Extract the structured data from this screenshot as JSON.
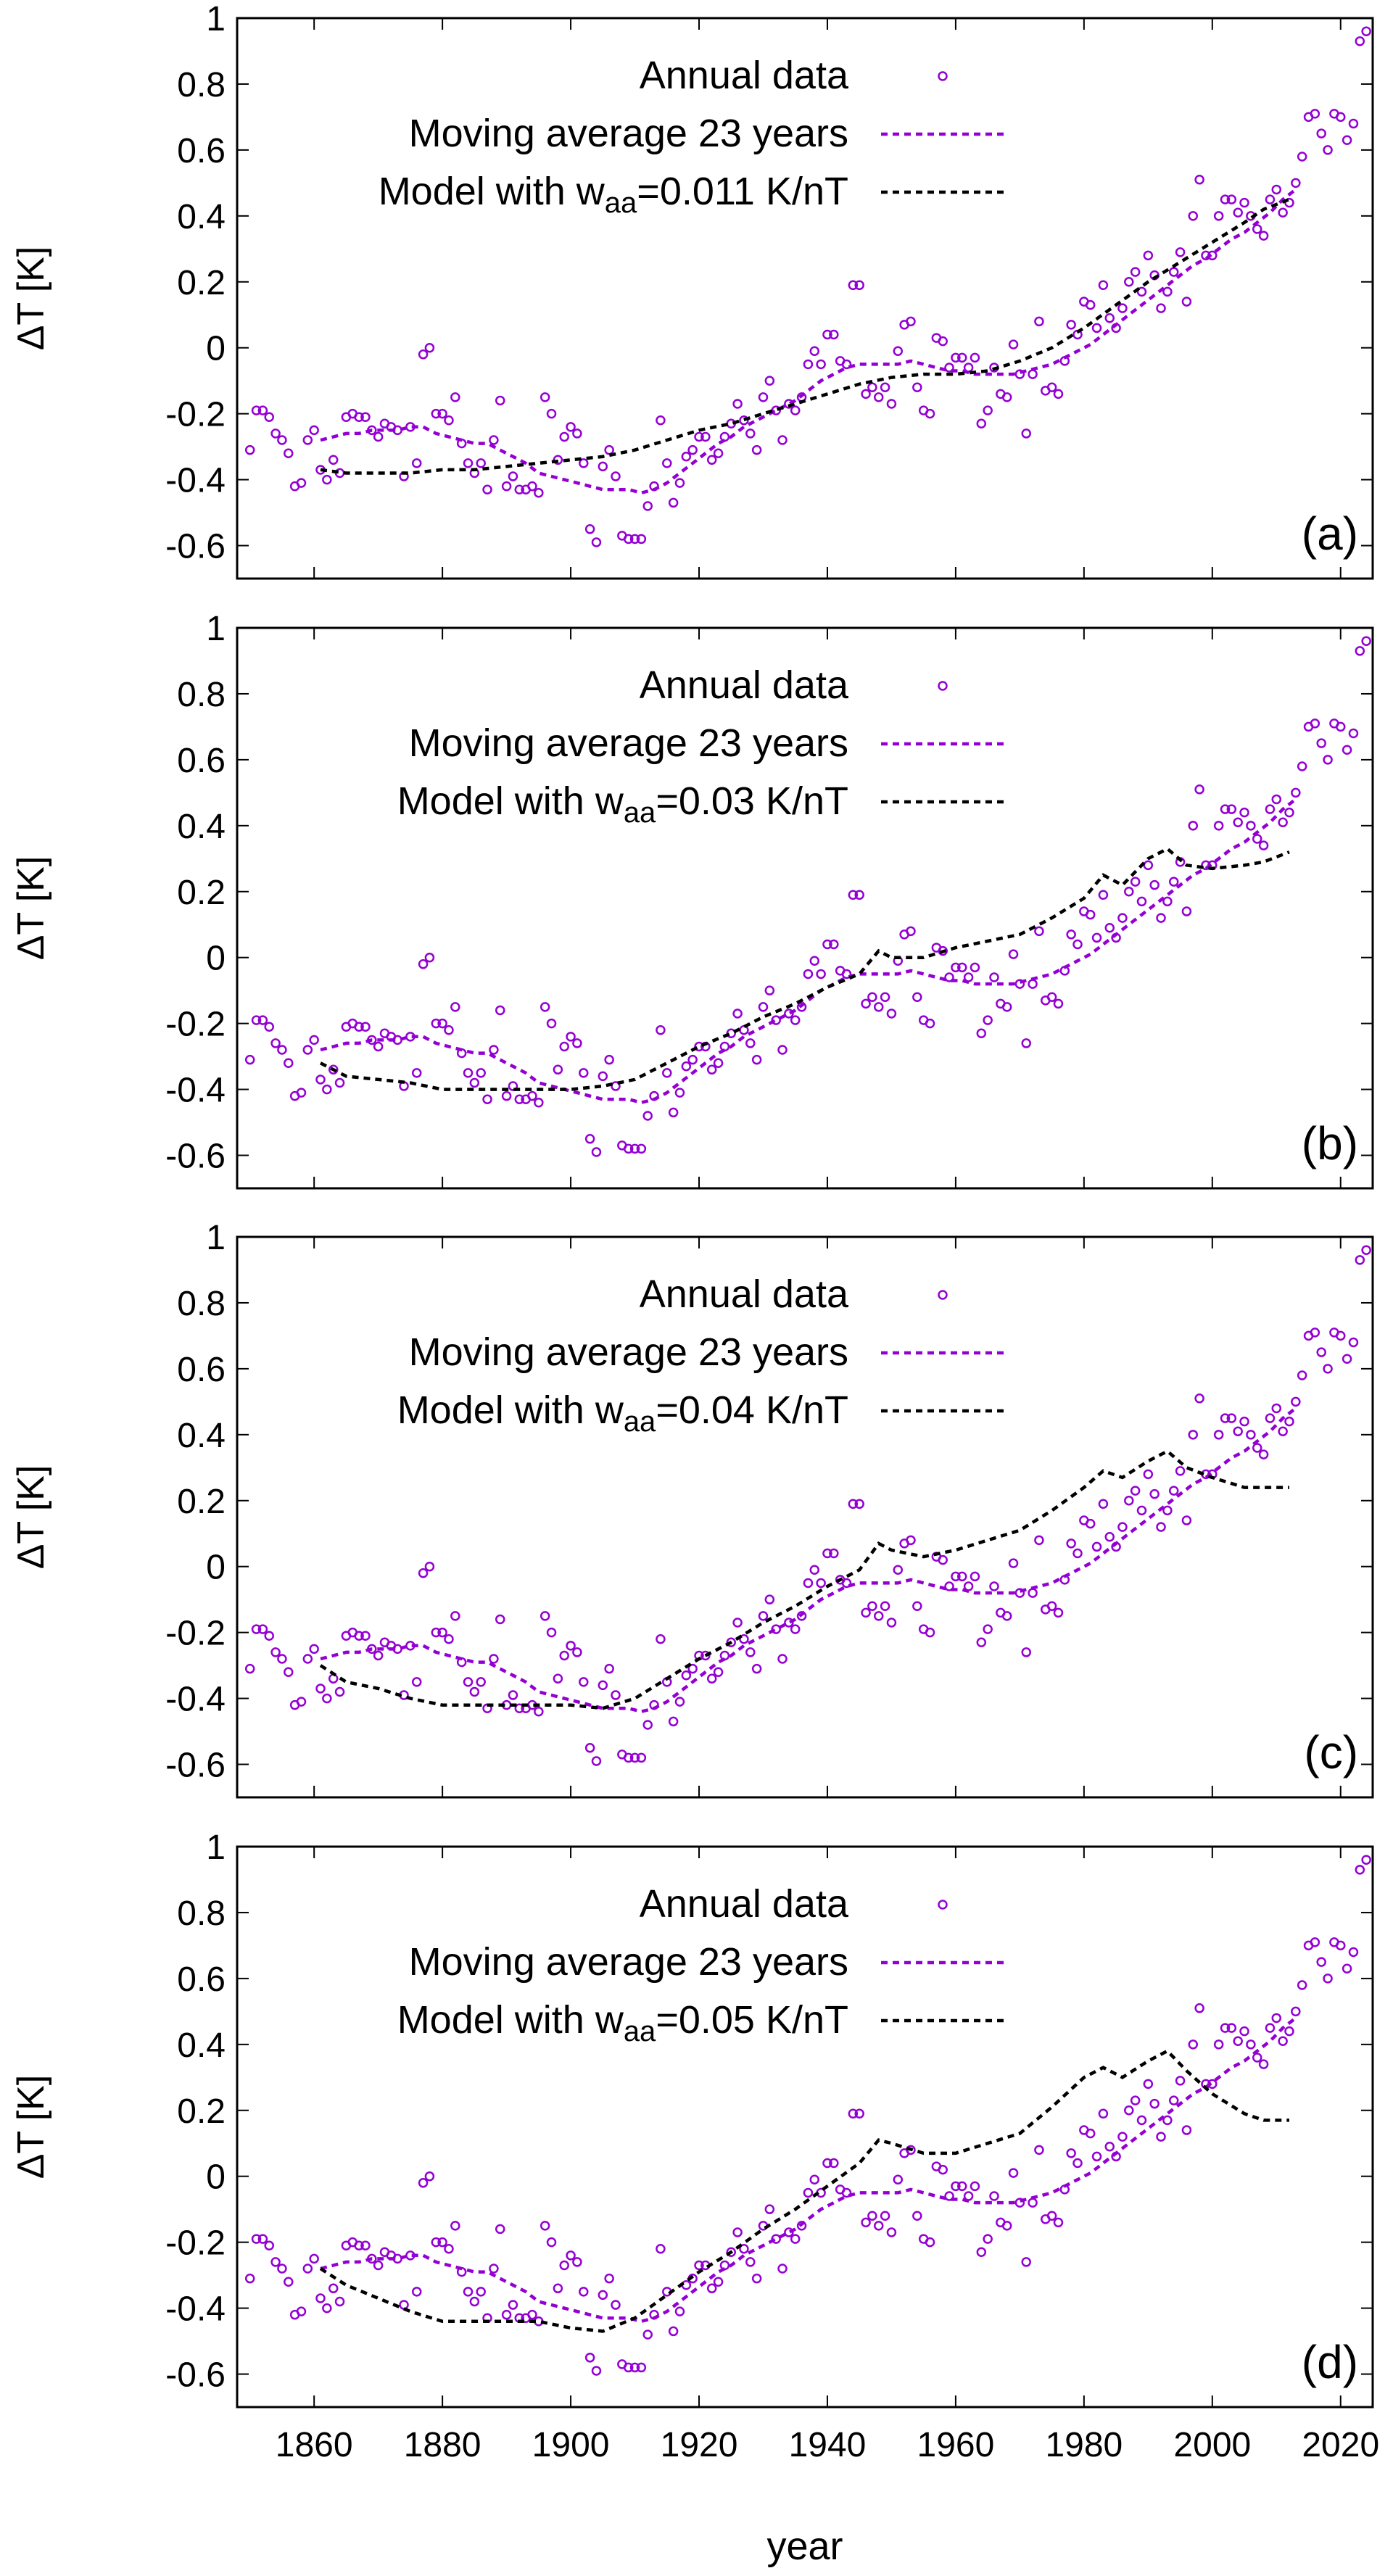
{
  "figure": {
    "xlabel": "year"
  },
  "chart_data": [
    {
      "type": "line",
      "panel_label": "(a)",
      "ylabel": "ΔT [K]",
      "xlim": [
        1848,
        2025
      ],
      "ylim": [
        -0.7,
        1.0
      ],
      "xticks": [
        1860,
        1880,
        1900,
        1920,
        1940,
        1960,
        1980,
        2000,
        2020
      ],
      "yticks": [
        -0.6,
        -0.4,
        -0.2,
        0,
        0.2,
        0.4,
        0.6,
        0.8,
        1
      ],
      "ytick_labels": [
        "-0.6",
        "-0.4",
        "-0.2",
        "0",
        "0.2",
        "0.4",
        "0.6",
        "0.8",
        "1"
      ],
      "xtick_labels": [
        "1860",
        "1880",
        "1900",
        "1920",
        "1940",
        "1960",
        "1980",
        "2000",
        "2020"
      ],
      "legend": {
        "position": "top-center",
        "annual_label": "Annual data",
        "moving_label": "Moving average 23 years",
        "model_prefix": "Model with w",
        "model_sub": "aa",
        "model_suffix": "=0.011 K/nT"
      },
      "model": {
        "x": [
          1861,
          1865,
          1870,
          1875,
          1880,
          1885,
          1890,
          1895,
          1900,
          1905,
          1910,
          1915,
          1920,
          1925,
          1930,
          1935,
          1940,
          1945,
          1950,
          1955,
          1960,
          1965,
          1970,
          1975,
          1980,
          1985,
          1990,
          1995,
          2000,
          2005,
          2008,
          2012
        ],
        "y": [
          -0.37,
          -0.38,
          -0.38,
          -0.38,
          -0.37,
          -0.37,
          -0.36,
          -0.35,
          -0.34,
          -0.33,
          -0.31,
          -0.28,
          -0.25,
          -0.23,
          -0.2,
          -0.17,
          -0.14,
          -0.11,
          -0.09,
          -0.08,
          -0.08,
          -0.07,
          -0.04,
          0.0,
          0.06,
          0.13,
          0.2,
          0.26,
          0.32,
          0.38,
          0.42,
          0.45
        ]
      }
    },
    {
      "type": "line",
      "panel_label": "(b)",
      "ylabel": "ΔT [K]",
      "xlim": [
        1848,
        2025
      ],
      "ylim": [
        -0.7,
        1.0
      ],
      "xticks": [
        1860,
        1880,
        1900,
        1920,
        1940,
        1960,
        1980,
        2000,
        2020
      ],
      "yticks": [
        -0.6,
        -0.4,
        -0.2,
        0,
        0.2,
        0.4,
        0.6,
        0.8,
        1
      ],
      "ytick_labels": [
        "-0.6",
        "-0.4",
        "-0.2",
        "0",
        "0.2",
        "0.4",
        "0.6",
        "0.8",
        "1"
      ],
      "xtick_labels": [
        "1860",
        "1880",
        "1900",
        "1920",
        "1940",
        "1960",
        "1980",
        "2000",
        "2020"
      ],
      "legend": {
        "position": "top-center",
        "annual_label": "Annual data",
        "moving_label": "Moving average 23 years",
        "model_prefix": "Model with w",
        "model_sub": "aa",
        "model_suffix": "=0.03 K/nT"
      },
      "model": {
        "x": [
          1861,
          1865,
          1870,
          1875,
          1880,
          1885,
          1890,
          1895,
          1900,
          1905,
          1910,
          1915,
          1920,
          1925,
          1930,
          1935,
          1940,
          1945,
          1948,
          1950,
          1955,
          1960,
          1965,
          1970,
          1975,
          1980,
          1983,
          1986,
          1990,
          1993,
          1996,
          2000,
          2005,
          2008,
          2012
        ],
        "y": [
          -0.32,
          -0.36,
          -0.37,
          -0.38,
          -0.4,
          -0.4,
          -0.4,
          -0.4,
          -0.4,
          -0.39,
          -0.37,
          -0.32,
          -0.27,
          -0.23,
          -0.18,
          -0.14,
          -0.09,
          -0.05,
          0.02,
          0.0,
          0.0,
          0.03,
          0.05,
          0.07,
          0.12,
          0.18,
          0.25,
          0.22,
          0.3,
          0.33,
          0.28,
          0.27,
          0.28,
          0.29,
          0.32
        ]
      }
    },
    {
      "type": "line",
      "panel_label": "(c)",
      "ylabel": "ΔT [K]",
      "xlim": [
        1848,
        2025
      ],
      "ylim": [
        -0.7,
        1.0
      ],
      "xticks": [
        1860,
        1880,
        1900,
        1920,
        1940,
        1960,
        1980,
        2000,
        2020
      ],
      "yticks": [
        -0.6,
        -0.4,
        -0.2,
        0,
        0.2,
        0.4,
        0.6,
        0.8,
        1
      ],
      "ytick_labels": [
        "-0.6",
        "-0.4",
        "-0.2",
        "0",
        "0.2",
        "0.4",
        "0.6",
        "0.8",
        "1"
      ],
      "xtick_labels": [
        "1860",
        "1880",
        "1900",
        "1920",
        "1940",
        "1960",
        "1980",
        "2000",
        "2020"
      ],
      "legend": {
        "position": "top-center",
        "annual_label": "Annual data",
        "moving_label": "Moving average 23 years",
        "model_prefix": "Model with w",
        "model_sub": "aa",
        "model_suffix": "=0.04 K/nT"
      },
      "model": {
        "x": [
          1861,
          1865,
          1870,
          1875,
          1880,
          1885,
          1890,
          1895,
          1900,
          1905,
          1910,
          1915,
          1920,
          1925,
          1930,
          1935,
          1940,
          1945,
          1948,
          1950,
          1955,
          1960,
          1965,
          1970,
          1975,
          1980,
          1983,
          1986,
          1990,
          1993,
          1996,
          2000,
          2005,
          2008,
          2012
        ],
        "y": [
          -0.3,
          -0.35,
          -0.37,
          -0.4,
          -0.42,
          -0.42,
          -0.42,
          -0.42,
          -0.42,
          -0.43,
          -0.4,
          -0.34,
          -0.28,
          -0.23,
          -0.17,
          -0.12,
          -0.06,
          -0.01,
          0.07,
          0.05,
          0.03,
          0.05,
          0.08,
          0.11,
          0.17,
          0.24,
          0.29,
          0.27,
          0.32,
          0.35,
          0.3,
          0.27,
          0.24,
          0.24,
          0.24
        ]
      }
    },
    {
      "type": "line",
      "panel_label": "(d)",
      "ylabel": "ΔT [K]",
      "xlim": [
        1848,
        2025
      ],
      "ylim": [
        -0.7,
        1.0
      ],
      "xticks": [
        1860,
        1880,
        1900,
        1920,
        1940,
        1960,
        1980,
        2000,
        2020
      ],
      "yticks": [
        -0.6,
        -0.4,
        -0.2,
        0,
        0.2,
        0.4,
        0.6,
        0.8,
        1
      ],
      "ytick_labels": [
        "-0.6",
        "-0.4",
        "-0.2",
        "0",
        "0.2",
        "0.4",
        "0.6",
        "0.8",
        "1"
      ],
      "xtick_labels": [
        "1860",
        "1880",
        "1900",
        "1920",
        "1940",
        "1960",
        "1980",
        "2000",
        "2020"
      ],
      "legend": {
        "position": "top-center",
        "annual_label": "Annual data",
        "moving_label": "Moving average 23 years",
        "model_prefix": "Model with w",
        "model_sub": "aa",
        "model_suffix": "=0.05 K/nT"
      },
      "model": {
        "x": [
          1861,
          1865,
          1870,
          1875,
          1880,
          1885,
          1890,
          1895,
          1900,
          1905,
          1910,
          1915,
          1920,
          1925,
          1930,
          1935,
          1940,
          1945,
          1948,
          1950,
          1955,
          1960,
          1965,
          1970,
          1975,
          1980,
          1983,
          1986,
          1990,
          1993,
          1996,
          2000,
          2005,
          2008,
          2012
        ],
        "y": [
          -0.28,
          -0.33,
          -0.37,
          -0.41,
          -0.44,
          -0.44,
          -0.44,
          -0.44,
          -0.46,
          -0.47,
          -0.43,
          -0.36,
          -0.29,
          -0.23,
          -0.16,
          -0.1,
          -0.03,
          0.04,
          0.11,
          0.1,
          0.07,
          0.07,
          0.1,
          0.13,
          0.21,
          0.3,
          0.33,
          0.3,
          0.35,
          0.38,
          0.32,
          0.25,
          0.19,
          0.17,
          0.17
        ]
      }
    }
  ],
  "shared_series": {
    "annual": {
      "name": "Annual data",
      "x": [
        1850,
        1851,
        1852,
        1853,
        1854,
        1855,
        1856,
        1857,
        1858,
        1859,
        1860,
        1861,
        1862,
        1863,
        1864,
        1865,
        1866,
        1867,
        1868,
        1869,
        1870,
        1871,
        1872,
        1873,
        1874,
        1875,
        1876,
        1877,
        1878,
        1879,
        1880,
        1881,
        1882,
        1883,
        1884,
        1885,
        1886,
        1887,
        1888,
        1889,
        1890,
        1891,
        1892,
        1893,
        1894,
        1895,
        1896,
        1897,
        1898,
        1899,
        1900,
        1901,
        1902,
        1903,
        1904,
        1905,
        1906,
        1907,
        1908,
        1909,
        1910,
        1911,
        1912,
        1913,
        1914,
        1915,
        1916,
        1917,
        1918,
        1919,
        1920,
        1921,
        1922,
        1923,
        1924,
        1925,
        1926,
        1927,
        1928,
        1929,
        1930,
        1931,
        1932,
        1933,
        1934,
        1935,
        1936,
        1937,
        1938,
        1939,
        1940,
        1941,
        1942,
        1943,
        1944,
        1945,
        1946,
        1947,
        1948,
        1949,
        1950,
        1951,
        1952,
        1953,
        1954,
        1955,
        1956,
        1957,
        1958,
        1959,
        1960,
        1961,
        1962,
        1963,
        1964,
        1965,
        1966,
        1967,
        1968,
        1969,
        1970,
        1971,
        1972,
        1973,
        1974,
        1975,
        1976,
        1977,
        1978,
        1979,
        1980,
        1981,
        1982,
        1983,
        1984,
        1985,
        1986,
        1987,
        1988,
        1989,
        1990,
        1991,
        1992,
        1993,
        1994,
        1995,
        1996,
        1997,
        1998,
        1999,
        2000,
        2001,
        2002,
        2003,
        2004,
        2005,
        2006,
        2007,
        2008,
        2009,
        2010,
        2011,
        2012,
        2013,
        2014,
        2015,
        2016,
        2017,
        2018,
        2019,
        2020,
        2021,
        2022,
        2023,
        2024
      ],
      "y": [
        -0.31,
        -0.19,
        -0.19,
        -0.21,
        -0.26,
        -0.28,
        -0.32,
        -0.42,
        -0.41,
        -0.28,
        -0.25,
        -0.37,
        -0.4,
        -0.34,
        -0.38,
        -0.21,
        -0.2,
        -0.21,
        -0.21,
        -0.25,
        -0.27,
        -0.23,
        -0.24,
        -0.25,
        -0.39,
        -0.24,
        -0.35,
        -0.02,
        0.0,
        -0.2,
        -0.2,
        -0.22,
        -0.15,
        -0.29,
        -0.35,
        -0.38,
        -0.35,
        -0.43,
        -0.28,
        -0.16,
        -0.42,
        -0.39,
        -0.43,
        -0.43,
        -0.42,
        -0.44,
        -0.15,
        -0.2,
        -0.34,
        -0.27,
        -0.24,
        -0.26,
        -0.35,
        -0.55,
        -0.59,
        -0.36,
        -0.31,
        -0.39,
        -0.57,
        -0.58,
        -0.58,
        -0.58,
        -0.48,
        -0.42,
        -0.22,
        -0.35,
        -0.47,
        -0.41,
        -0.33,
        -0.31,
        -0.27,
        -0.27,
        -0.34,
        -0.32,
        -0.27,
        -0.23,
        -0.17,
        -0.22,
        -0.26,
        -0.31,
        -0.15,
        -0.1,
        -0.19,
        -0.28,
        -0.17,
        -0.19,
        -0.15,
        -0.05,
        -0.01,
        -0.05,
        0.04,
        0.04,
        -0.04,
        -0.05,
        0.19,
        0.19,
        -0.14,
        -0.12,
        -0.15,
        -0.12,
        -0.17,
        -0.01,
        0.07,
        0.08,
        -0.12,
        -0.19,
        -0.2,
        0.03,
        0.02,
        -0.06,
        -0.03,
        -0.03,
        -0.06,
        -0.03,
        -0.23,
        -0.19,
        -0.06,
        -0.14,
        -0.15,
        0.01,
        -0.08,
        -0.26,
        -0.08,
        0.08,
        -0.13,
        -0.12,
        -0.14,
        -0.04,
        0.07,
        0.04,
        0.14,
        0.13,
        0.06,
        0.19,
        0.09,
        0.06,
        0.12,
        0.2,
        0.23,
        0.17,
        0.28,
        0.22,
        0.12,
        0.17,
        0.23,
        0.29,
        0.14,
        0.4,
        0.51,
        0.28,
        0.28,
        0.4,
        0.45,
        0.45,
        0.41,
        0.44,
        0.4,
        0.36,
        0.34,
        0.45,
        0.48,
        0.41,
        0.44,
        0.5,
        0.58,
        0.7,
        0.71,
        0.65,
        0.6,
        0.71,
        0.7,
        0.63,
        0.68,
        0.93,
        0.96
      ]
    },
    "moving": {
      "name": "Moving average 23 years",
      "x": [
        1861,
        1863,
        1865,
        1867,
        1869,
        1871,
        1873,
        1875,
        1877,
        1879,
        1881,
        1883,
        1885,
        1887,
        1889,
        1891,
        1893,
        1895,
        1897,
        1899,
        1901,
        1903,
        1905,
        1907,
        1909,
        1911,
        1913,
        1915,
        1917,
        1919,
        1921,
        1923,
        1925,
        1927,
        1929,
        1931,
        1933,
        1935,
        1937,
        1939,
        1941,
        1943,
        1945,
        1947,
        1949,
        1951,
        1953,
        1955,
        1957,
        1959,
        1961,
        1963,
        1965,
        1967,
        1969,
        1971,
        1973,
        1975,
        1977,
        1979,
        1981,
        1983,
        1985,
        1987,
        1989,
        1991,
        1993,
        1995,
        1997,
        1999,
        2001,
        2003,
        2005,
        2007,
        2009,
        2011,
        2013
      ],
      "y": [
        -0.28,
        -0.27,
        -0.26,
        -0.26,
        -0.25,
        -0.25,
        -0.25,
        -0.24,
        -0.24,
        -0.26,
        -0.27,
        -0.28,
        -0.29,
        -0.29,
        -0.31,
        -0.33,
        -0.35,
        -0.38,
        -0.39,
        -0.4,
        -0.41,
        -0.42,
        -0.43,
        -0.43,
        -0.43,
        -0.44,
        -0.43,
        -0.41,
        -0.38,
        -0.35,
        -0.32,
        -0.29,
        -0.27,
        -0.24,
        -0.22,
        -0.2,
        -0.18,
        -0.16,
        -0.13,
        -0.1,
        -0.08,
        -0.06,
        -0.05,
        -0.05,
        -0.05,
        -0.05,
        -0.04,
        -0.05,
        -0.06,
        -0.07,
        -0.07,
        -0.08,
        -0.08,
        -0.08,
        -0.08,
        -0.07,
        -0.06,
        -0.05,
        -0.03,
        -0.01,
        0.01,
        0.04,
        0.07,
        0.1,
        0.13,
        0.16,
        0.19,
        0.22,
        0.25,
        0.27,
        0.3,
        0.33,
        0.35,
        0.38,
        0.41,
        0.45,
        0.48
      ]
    }
  }
}
